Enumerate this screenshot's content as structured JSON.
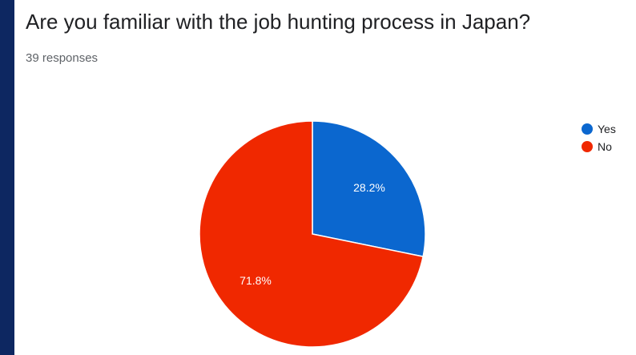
{
  "chart_data": {
    "type": "pie",
    "title": "Are you familiar with the job hunting process in Japan?",
    "subtitle": "39 responses",
    "categories": [
      "Yes",
      "No"
    ],
    "values": [
      28.2,
      71.8
    ],
    "labels": [
      "28.2%",
      "71.8%"
    ],
    "colors": [
      "#0b67cf",
      "#f02800"
    ],
    "legend_position": "top-right"
  }
}
